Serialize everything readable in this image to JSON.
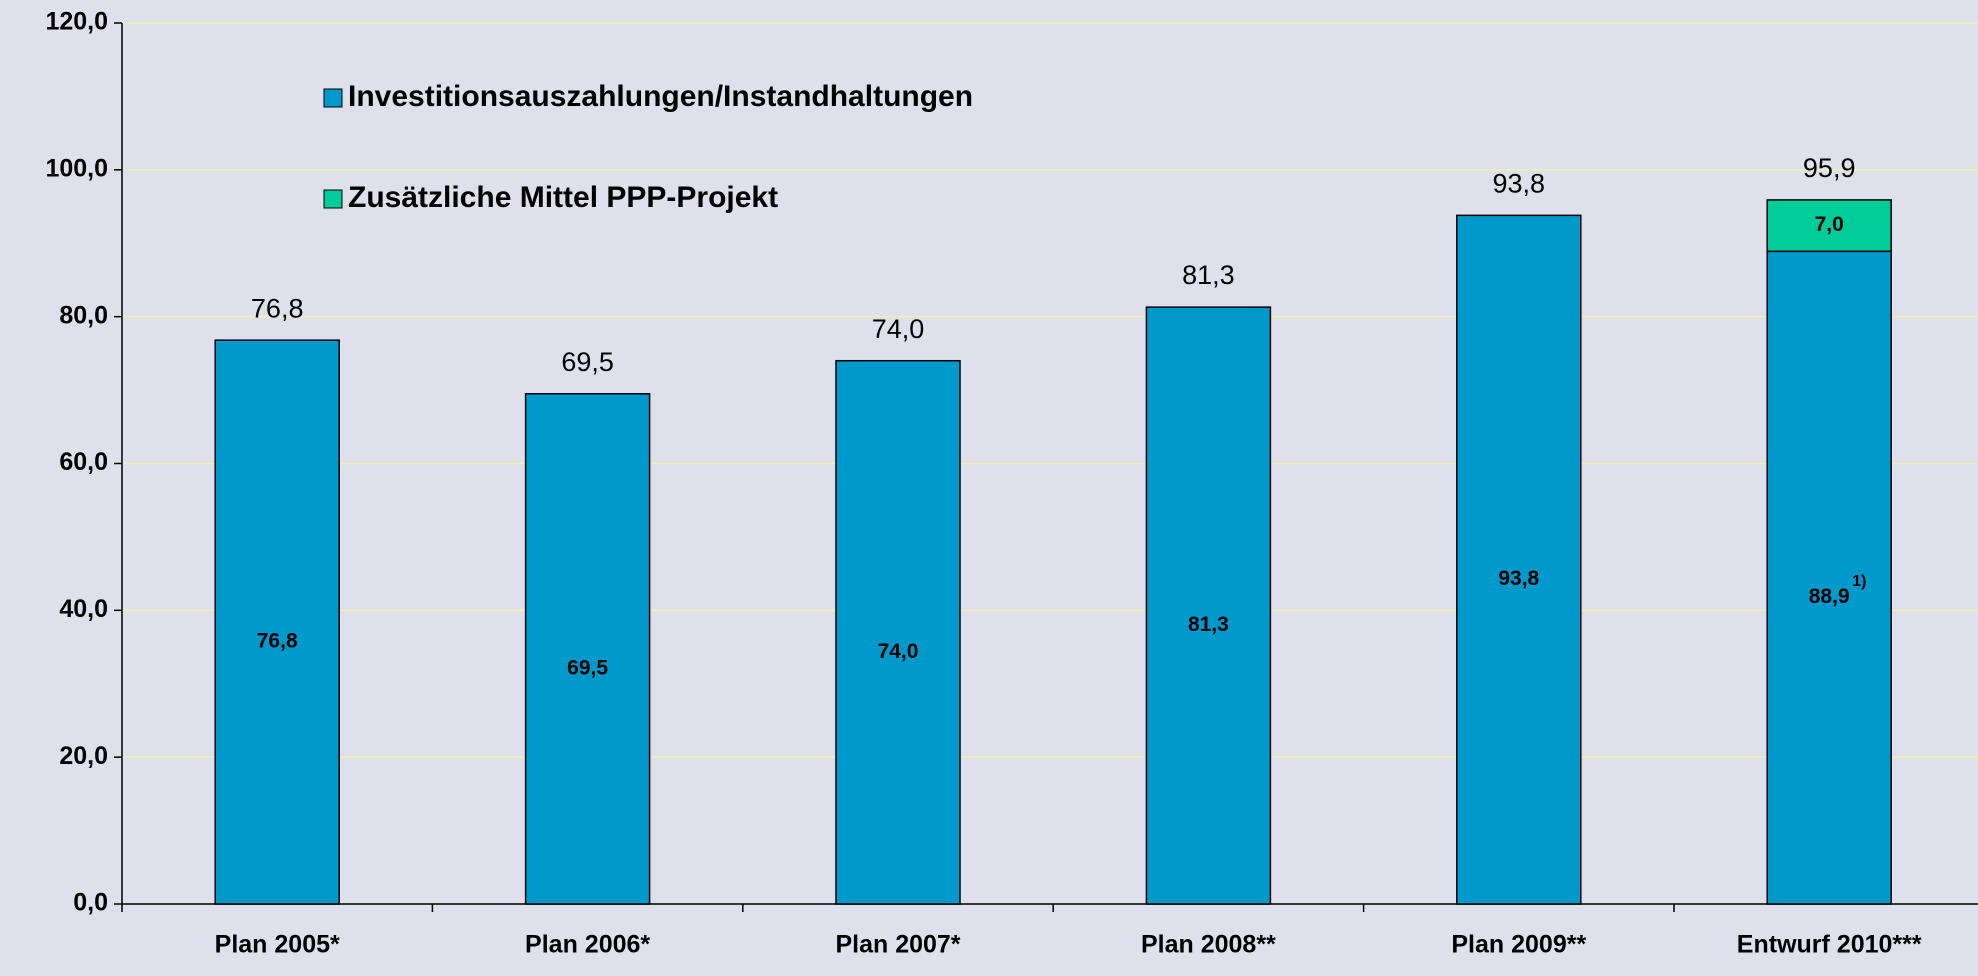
{
  "chart_data": {
    "type": "stacked_bar",
    "categories": [
      "Plan 2005*",
      "Plan 2006*",
      "Plan 2007*",
      "Plan 2008**",
      "Plan 2009**",
      "Entwurf 2010***"
    ],
    "series": [
      {
        "name": "Investitionsauszahlungen/Instandhaltungen",
        "color": "#0099cc",
        "values": [
          76.8,
          69.5,
          74.0,
          81.3,
          93.8,
          88.9
        ],
        "value_labels": [
          "76,8",
          "69,5",
          "74,0",
          "81,3",
          "93,8",
          "88,9"
        ]
      },
      {
        "name": "Zusätzliche Mittel PPP-Projekt",
        "color": "#00cc99",
        "values": [
          null,
          null,
          null,
          null,
          null,
          7.0
        ],
        "value_labels": [
          null,
          null,
          null,
          null,
          null,
          "7,0"
        ]
      }
    ],
    "totals": [
      76.8,
      69.5,
      74.0,
      81.3,
      93.8,
      95.9
    ],
    "total_labels": [
      "76,8",
      "69,5",
      "74,0",
      "81,3",
      "93,8",
      "95,9"
    ],
    "footnote": {
      "text": "1)",
      "series": 0,
      "index": 5
    },
    "ylim": [
      0,
      120
    ],
    "yticks": [
      {
        "value": 0,
        "label": "0,0"
      },
      {
        "value": 20,
        "label": "20,0"
      },
      {
        "value": 40,
        "label": "40,0"
      },
      {
        "value": 60,
        "label": "60,0"
      },
      {
        "value": 80,
        "label": "80,0"
      },
      {
        "value": 100,
        "label": "100,0"
      },
      {
        "value": 120,
        "label": "120,0"
      }
    ],
    "grid": true,
    "legend": "upper left"
  }
}
